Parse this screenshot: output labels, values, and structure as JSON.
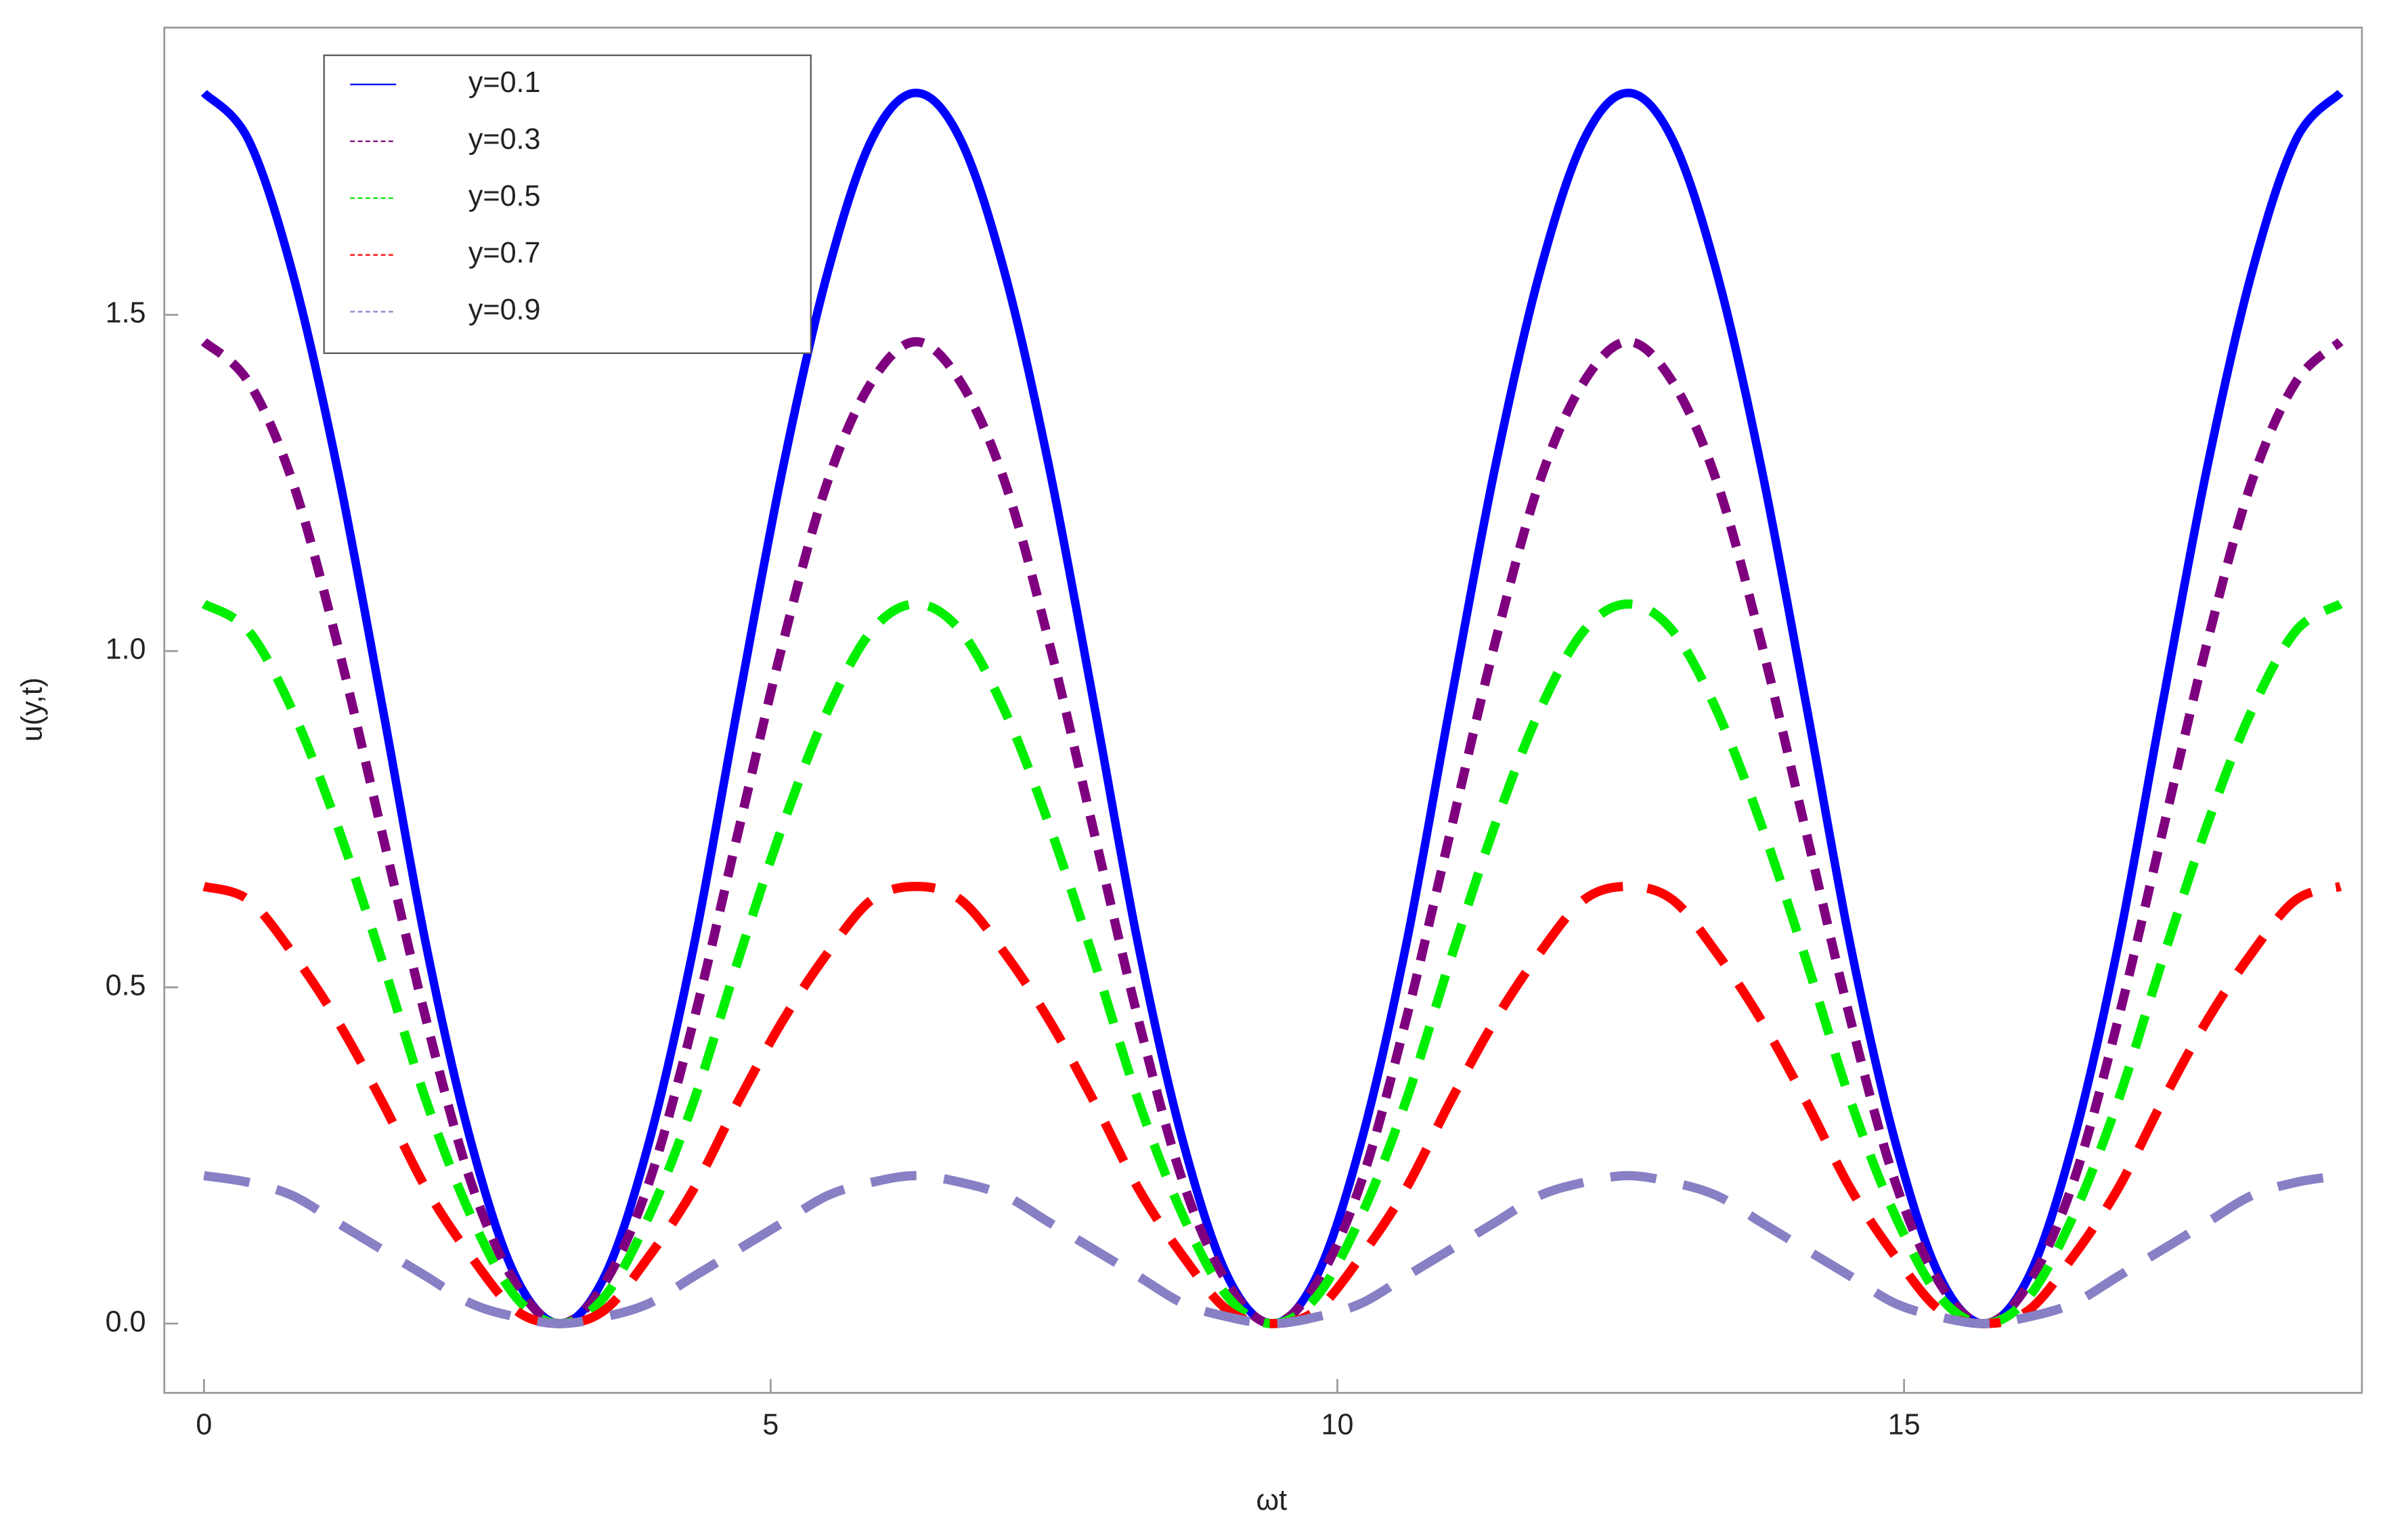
{
  "chart_data": {
    "type": "line",
    "x_label": "ωt",
    "y_label": "u(y,t)",
    "xlim": [
      -0.35,
      19.04
    ],
    "ylim": [
      -0.103,
      1.927
    ],
    "xticks": [
      0,
      5,
      10,
      15
    ],
    "yticks": [
      {
        "value": 0,
        "label": "0.0"
      },
      {
        "value": 0.5,
        "label": "0.5"
      },
      {
        "value": 1,
        "label": "1.0"
      },
      {
        "value": 1.5,
        "label": "1.5"
      }
    ],
    "legend": "upper left",
    "x": [
      0,
      0.393,
      0.785,
      1.178,
      1.571,
      1.963,
      2.356,
      2.749,
      3.142,
      3.534,
      3.927,
      4.32,
      4.712,
      5.105,
      5.498,
      5.89,
      6.283,
      6.676,
      7.069,
      7.461,
      7.854,
      8.247,
      8.639,
      9.032,
      9.425,
      9.817,
      10.21,
      10.603,
      10.996,
      11.388,
      11.781,
      12.174,
      12.566,
      12.959,
      13.352,
      13.744,
      14.137,
      14.53,
      14.923,
      15.315,
      15.708,
      16.101,
      16.493,
      16.886,
      17.279,
      17.671,
      18.064,
      18.457,
      18.85
    ],
    "series": [
      {
        "name": "y=0.1",
        "color": "#0000ff",
        "values": [
          1.83,
          1.76,
          1.56,
          1.27,
          0.92,
          0.56,
          0.27,
          0.07,
          0,
          0.07,
          0.27,
          0.56,
          0.92,
          1.27,
          1.56,
          1.76,
          1.83,
          1.76,
          1.56,
          1.27,
          0.92,
          0.56,
          0.27,
          0.07,
          0,
          0.07,
          0.27,
          0.56,
          0.92,
          1.27,
          1.56,
          1.76,
          1.83,
          1.76,
          1.56,
          1.27,
          0.92,
          0.56,
          0.27,
          0.07,
          0,
          0.07,
          0.27,
          0.56,
          0.92,
          1.27,
          1.56,
          1.76,
          1.83
        ]
      },
      {
        "name": "y=0.3",
        "color": "#7f007f",
        "values": [
          1.46,
          1.4,
          1.25,
          1.01,
          0.73,
          0.45,
          0.21,
          0.06,
          0,
          0.06,
          0.21,
          0.45,
          0.73,
          1.01,
          1.25,
          1.4,
          1.46,
          1.4,
          1.25,
          1.01,
          0.73,
          0.45,
          0.21,
          0.06,
          0,
          0.06,
          0.21,
          0.45,
          0.73,
          1.01,
          1.25,
          1.4,
          1.46,
          1.4,
          1.25,
          1.01,
          0.73,
          0.45,
          0.21,
          0.06,
          0,
          0.06,
          0.21,
          0.45,
          0.73,
          1.01,
          1.25,
          1.4,
          1.46
        ]
      },
      {
        "name": "y=0.5",
        "color": "#00ee00",
        "values": [
          1.07,
          1.03,
          0.91,
          0.74,
          0.54,
          0.33,
          0.16,
          0.04,
          0,
          0.04,
          0.16,
          0.33,
          0.54,
          0.74,
          0.91,
          1.03,
          1.07,
          1.03,
          0.91,
          0.74,
          0.54,
          0.33,
          0.16,
          0.04,
          0,
          0.04,
          0.16,
          0.33,
          0.54,
          0.74,
          0.91,
          1.03,
          1.07,
          1.03,
          0.91,
          0.74,
          0.54,
          0.33,
          0.16,
          0.04,
          0,
          0.04,
          0.16,
          0.33,
          0.54,
          0.74,
          0.91,
          1.03,
          1.07
        ]
      },
      {
        "name": "y=0.7",
        "color": "#ff0000",
        "values": [
          0.65,
          0.63,
          0.55,
          0.45,
          0.33,
          0.2,
          0.1,
          0.02,
          0,
          0.02,
          0.1,
          0.2,
          0.33,
          0.45,
          0.55,
          0.63,
          0.65,
          0.63,
          0.55,
          0.45,
          0.33,
          0.2,
          0.1,
          0.02,
          0,
          0.02,
          0.1,
          0.2,
          0.33,
          0.45,
          0.55,
          0.63,
          0.65,
          0.63,
          0.55,
          0.45,
          0.33,
          0.2,
          0.1,
          0.02,
          0,
          0.02,
          0.1,
          0.2,
          0.33,
          0.45,
          0.55,
          0.63,
          0.65
        ]
      },
      {
        "name": "y=0.9",
        "color": "#8880c4",
        "values": [
          0.22,
          0.21,
          0.19,
          0.15,
          0.11,
          0.07,
          0.03,
          0.01,
          0,
          0.01,
          0.03,
          0.07,
          0.11,
          0.15,
          0.19,
          0.21,
          0.22,
          0.21,
          0.19,
          0.15,
          0.11,
          0.07,
          0.03,
          0.01,
          0,
          0.01,
          0.03,
          0.07,
          0.11,
          0.15,
          0.19,
          0.21,
          0.22,
          0.21,
          0.19,
          0.15,
          0.11,
          0.07,
          0.03,
          0.01,
          0,
          0.01,
          0.03,
          0.07,
          0.11,
          0.15,
          0.19,
          0.21,
          0.22
        ]
      }
    ]
  }
}
